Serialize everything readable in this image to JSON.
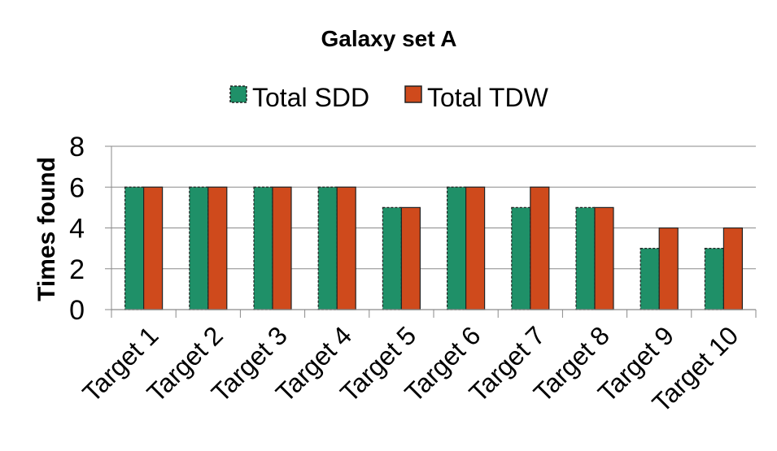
{
  "chart_data": {
    "type": "bar",
    "title": "Galaxy set A",
    "xlabel": "",
    "ylabel": "Times found",
    "ylim": [
      0,
      8
    ],
    "yticks": [
      0,
      2,
      4,
      6,
      8
    ],
    "grid": true,
    "legend_position": "top-center",
    "categories": [
      "Target 1",
      "Target 2",
      "Target 3",
      "Target 4",
      "Target 5",
      "Target 6",
      "Target 7",
      "Target 8",
      "Target 9",
      "Target 10"
    ],
    "series": [
      {
        "name": "Total SDD",
        "color": "#1f9068",
        "values": [
          6,
          6,
          6,
          6,
          5,
          6,
          5,
          5,
          3,
          3
        ]
      },
      {
        "name": "Total TDW",
        "color": "#cf4a1c",
        "values": [
          6,
          6,
          6,
          6,
          5,
          6,
          6,
          5,
          4,
          4
        ]
      }
    ]
  }
}
